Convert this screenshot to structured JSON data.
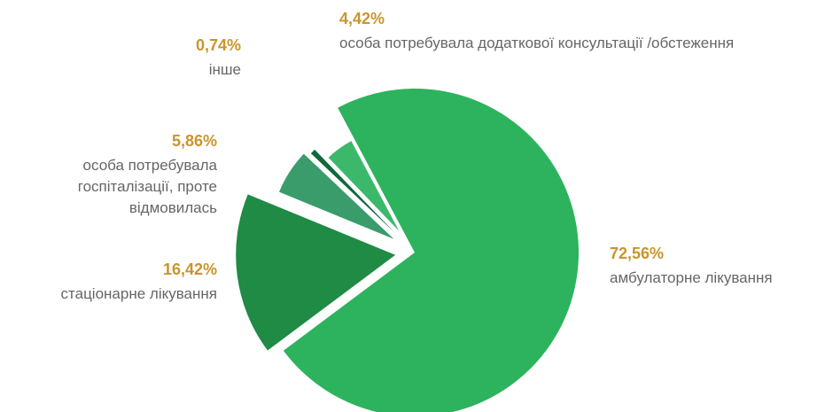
{
  "chart_data": {
    "type": "pie",
    "categories": [
      "амбулаторне лікування",
      "стаціонарне лікування",
      "особа потребувала госпіталізації, проте відмовилась",
      "інше",
      "особа потребувала додаткової консультації /обстеження"
    ],
    "values": [
      72.56,
      16.42,
      5.86,
      0.74,
      4.42
    ],
    "value_labels": [
      "72,56%",
      "16,42%",
      "5,86%",
      "0,74%",
      "4,42%"
    ],
    "colors": [
      "#2db35d",
      "#1f8b45",
      "#3a9c6b",
      "#0e6a39",
      "#3cb86a"
    ]
  }
}
